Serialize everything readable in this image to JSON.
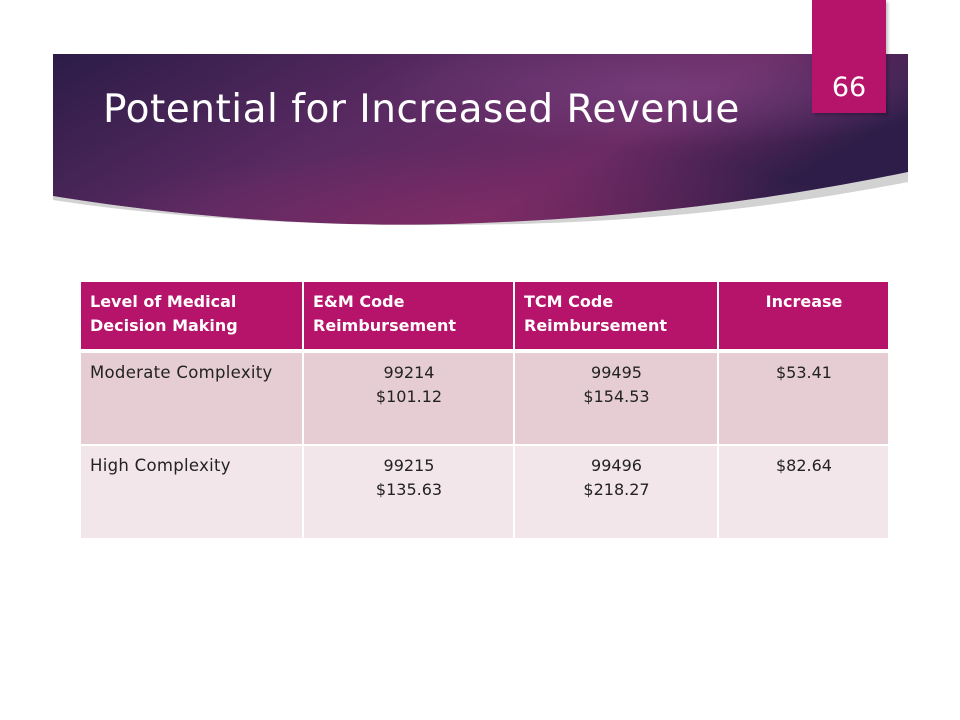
{
  "slide": {
    "title": "Potential for Increased Revenue",
    "number": "66"
  },
  "colors": {
    "banner_dark": "#2c1c47",
    "banner_mid": "#4a2a5e",
    "banner_magenta": "#7a2860",
    "accent": "#b5146a",
    "row_odd": "#e6cdd4",
    "row_even": "#f2e6ea"
  },
  "table": {
    "headers": [
      "Level of Medical Decision Making",
      "E&M Code Reimbursement",
      "TCM Code Reimbursement",
      "Increase"
    ],
    "rows": [
      {
        "level": "Moderate Complexity",
        "em_code": "99214",
        "em_amount": "$101.12",
        "tcm_code": "99495",
        "tcm_amount": "$154.53",
        "increase": "$53.41"
      },
      {
        "level": "High Complexity",
        "em_code": "99215",
        "em_amount": "$135.63",
        "tcm_code": "99496",
        "tcm_amount": "$218.27",
        "increase": "$82.64"
      }
    ]
  }
}
